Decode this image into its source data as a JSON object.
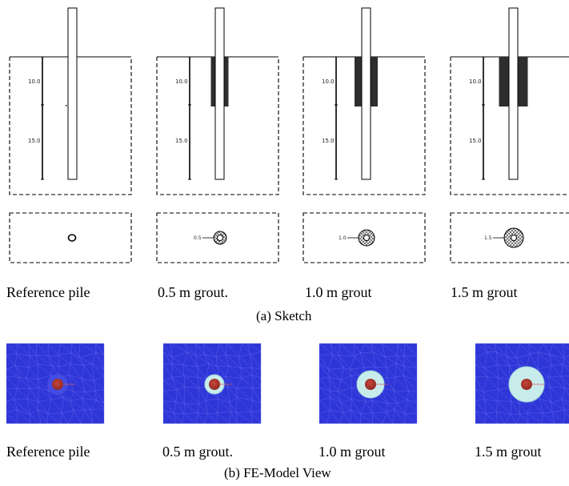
{
  "sketch": {
    "caption": "(a) Sketch",
    "depth_labels": [
      "10.0",
      "15.0"
    ],
    "panels": [
      {
        "label": "Reference pile",
        "grout_length_m": 0,
        "grout_annotation": ""
      },
      {
        "label": "0.5 m grout.",
        "grout_length_m": 0.5,
        "grout_annotation": "0.5"
      },
      {
        "label": "1.0 m grout",
        "grout_length_m": 1.0,
        "grout_annotation": "1.0"
      },
      {
        "label": "1.5 m grout",
        "grout_length_m": 1.5,
        "grout_annotation": "1.5"
      }
    ]
  },
  "fe_model": {
    "caption": "(b) FE-Model View",
    "panels": [
      {
        "label": "Reference pile",
        "grout_length_m": 0
      },
      {
        "label": "0.5 m grout.",
        "grout_length_m": 0.5
      },
      {
        "label": "1.0 m grout",
        "grout_length_m": 1.0
      },
      {
        "label": "1.5 m grout",
        "grout_length_m": 1.5
      }
    ]
  },
  "colors": {
    "soil_mesh": "#2f36d8",
    "mesh_line": "#6a70ee",
    "pile": "#b8352a",
    "grout": "#c8ecec",
    "grout_outline": "#9fd6d6",
    "grout_bar": "#2e2e2e"
  }
}
